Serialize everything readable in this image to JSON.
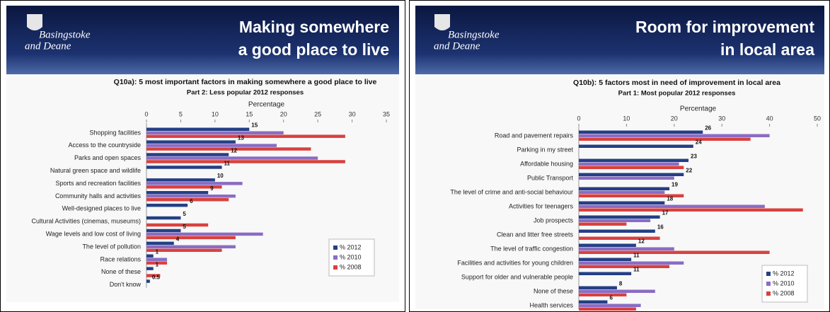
{
  "chart_data": [
    {
      "type": "bar",
      "orientation": "horizontal",
      "brand": [
        "Basingstoke",
        "and Deane"
      ],
      "heading": [
        "Making somewhere",
        "a good place to live"
      ],
      "title": "Q10a): 5 most important factors in making somewhere a good place to live",
      "subtitle": "Part 2: Less popular 2012 responses",
      "xlabel": "Percentage",
      "categories": [
        "Shopping facilities",
        "Access to the countryside",
        "Parks and open spaces",
        "Natural green space and wildlife",
        "Sports and recreation facilities",
        "Community halls and activities",
        "Well-designed places to live",
        "Cultural Activities (cinemas, museums)",
        "Wage levels and low cost of living",
        "The level of pollution",
        "Race relations",
        "None of these",
        "Don't know"
      ],
      "series": [
        {
          "name": "% 2012",
          "color": "#243f85",
          "values": [
            15,
            13,
            12,
            11,
            10,
            9,
            6,
            5,
            5,
            4,
            1,
            1,
            0.5
          ]
        },
        {
          "name": "% 2010",
          "color": "#8a6cc4",
          "values": [
            20,
            19,
            25,
            null,
            14,
            13,
            null,
            null,
            17,
            13,
            3,
            null,
            null
          ]
        },
        {
          "name": "% 2008",
          "color": "#d9413f",
          "values": [
            29,
            24,
            29,
            null,
            11,
            12,
            null,
            9,
            13,
            11,
            3,
            2,
            null
          ]
        }
      ],
      "xlim": [
        0,
        35
      ],
      "xticks": [
        0,
        5,
        10,
        15,
        20,
        25,
        30,
        35
      ],
      "labelled_series": 0,
      "legend": "lower right"
    },
    {
      "type": "bar",
      "orientation": "horizontal",
      "brand": [
        "Basingstoke",
        "and Deane"
      ],
      "heading": [
        "Room for improvement",
        "in local area"
      ],
      "title": "Q10b): 5 factors most in need of improvement in local area",
      "subtitle": "Part 1: Most popular 2012 responses",
      "xlabel": "Percentage",
      "categories": [
        "Road and pavement repairs",
        "Parking in my street",
        "Affordable housing",
        "Public Transport",
        "The level of crime and anti-social behaviour",
        "Activities for teenagers",
        "Job prospects",
        "Clean and litter free streets",
        "The level of traffic congestion",
        "Facilities and activities for young children",
        "Support for older and vulnerable people",
        "None of these",
        "Health services"
      ],
      "series": [
        {
          "name": "% 2012",
          "color": "#243f85",
          "values": [
            26,
            24,
            23,
            22,
            19,
            18,
            17,
            16,
            12,
            11,
            11,
            8,
            6
          ]
        },
        {
          "name": "% 2010",
          "color": "#8a6cc4",
          "values": [
            40,
            null,
            21,
            20,
            18,
            39,
            15,
            null,
            20,
            22,
            null,
            16,
            13
          ]
        },
        {
          "name": "% 2008",
          "color": "#d9413f",
          "values": [
            36,
            null,
            22,
            null,
            22,
            47,
            10,
            17,
            40,
            19,
            null,
            10,
            12
          ]
        }
      ],
      "xlim": [
        0,
        50
      ],
      "xticks": [
        0,
        10,
        20,
        30,
        40,
        50
      ],
      "labelled_series": 0,
      "legend": "lower right"
    }
  ]
}
